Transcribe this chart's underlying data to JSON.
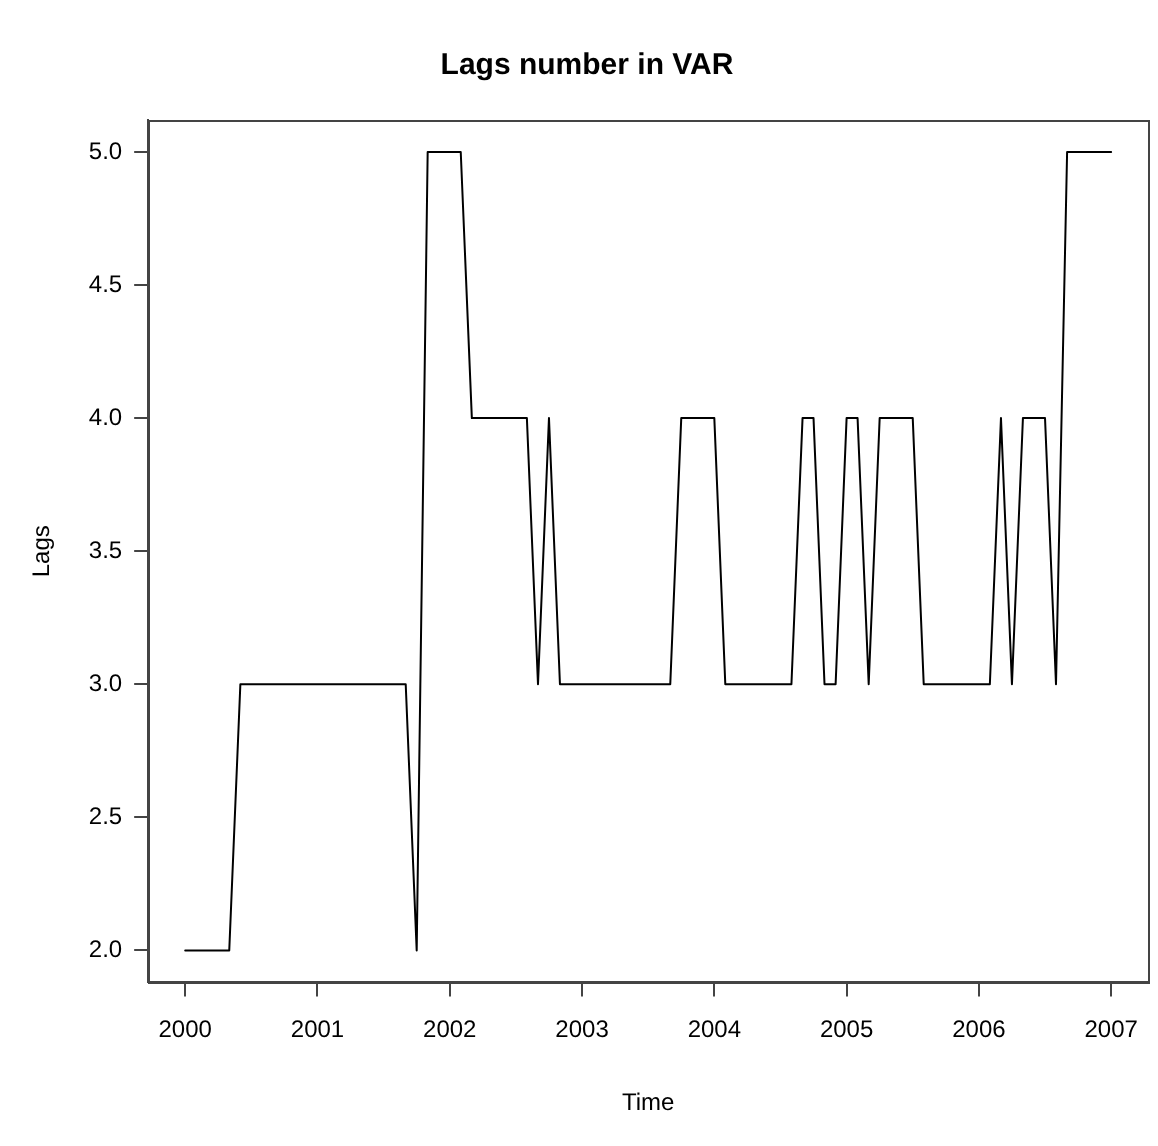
{
  "chart_data": {
    "type": "line",
    "title": "Lags number in VAR",
    "xlabel": "Time",
    "ylabel": "Lags",
    "x": [
      2000,
      2000.333,
      2000.417,
      2001.667,
      2001.75,
      2001.833,
      2002.083,
      2002.167,
      2002.583,
      2002.667,
      2002.75,
      2002.833,
      2003.667,
      2003.75,
      2004,
      2004.083,
      2004.583,
      2004.667,
      2004.75,
      2004.833,
      2004.917,
      2005,
      2005.083,
      2005.167,
      2005.25,
      2005.5,
      2005.583,
      2006.083,
      2006.167,
      2006.25,
      2006.333,
      2006.5,
      2006.583,
      2006.667,
      2007
    ],
    "series": [
      {
        "color": "#000000",
        "values": [
          2,
          2,
          3,
          3,
          2,
          5,
          5,
          4,
          4,
          3,
          4,
          3,
          3,
          4,
          4,
          3,
          3,
          4,
          4,
          3,
          3,
          4,
          4,
          3,
          4,
          4,
          3,
          3,
          4,
          3,
          4,
          4,
          3,
          5,
          5
        ]
      }
    ],
    "xlim": [
      1999.72,
      2007.28
    ],
    "xticks": [
      2000,
      2001,
      2002,
      2003,
      2004,
      2005,
      2006,
      2007
    ],
    "ylim": [
      1.88,
      5.12
    ],
    "yticks": [
      {
        "value": 2,
        "label": "2.0"
      },
      {
        "value": 2.5,
        "label": "2.5"
      },
      {
        "value": 3,
        "label": "3.0"
      },
      {
        "value": 3.5,
        "label": "3.5"
      },
      {
        "value": 4,
        "label": "4.0"
      },
      {
        "value": 4.5,
        "label": "4.5"
      },
      {
        "value": 5,
        "label": "5.0"
      }
    ],
    "marker": "none",
    "line_style": "solid",
    "legend": false
  }
}
